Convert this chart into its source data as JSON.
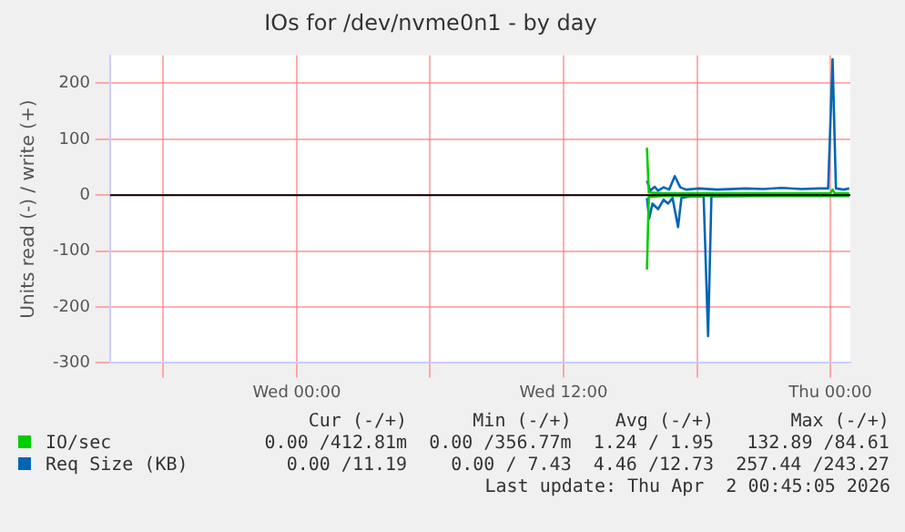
{
  "chart_data": {
    "type": "line",
    "title": "IOs for /dev/nvme0n1 - by day",
    "ylabel": "Units read (-) / write (+)",
    "xlim": [
      "2026-03-31T15:36",
      "2026-04-02T00:54"
    ],
    "xticks": [
      {
        "value": "2026-03-31T18:00",
        "label": null
      },
      {
        "value": "2026-04-01T00:00",
        "label": "Wed 00:00"
      },
      {
        "value": "2026-04-01T06:00",
        "label": null
      },
      {
        "value": "2026-04-01T12:00",
        "label": "Wed 12:00"
      },
      {
        "value": "2026-04-01T18:00",
        "label": null
      },
      {
        "value": "2026-04-02T00:00",
        "label": "Thu 00:00"
      }
    ],
    "ylim": [
      -300,
      250
    ],
    "yticks": [
      -300,
      -200,
      -100,
      0,
      100,
      200
    ],
    "grid": true,
    "legend": "bottom",
    "marker": "none",
    "ref_lines": [
      {
        "axis": "y",
        "value": 0,
        "color": "#000000"
      }
    ],
    "series": [
      {
        "name": "IO/sec",
        "color": "#00cc00",
        "x": [
          "2026-04-01T15:45",
          "2026-04-01T15:50",
          "2026-04-01T16:30",
          "2026-04-01T18:00",
          "2026-04-01T20:00",
          "2026-04-01T22:00",
          "2026-04-02T00:00",
          "2026-04-02T00:06",
          "2026-04-02T00:12",
          "2026-04-02T00:51"
        ],
        "values": [
          85,
          5,
          3,
          3,
          3,
          3,
          3,
          10,
          3,
          3
        ]
      },
      {
        "color": "#00cc00",
        "x": [
          "2026-04-01T15:45",
          "2026-04-01T15:50",
          "2026-04-01T16:30",
          "2026-04-01T18:00",
          "2026-04-01T20:00",
          "2026-04-01T22:00",
          "2026-04-02T00:51"
        ],
        "values": [
          -133,
          -3,
          -1,
          -1,
          -1,
          -1,
          -1
        ]
      },
      {
        "name": "Req Size (KB)",
        "color": "#0066b3",
        "x": [
          "2026-04-01T15:45",
          "2026-04-01T15:54",
          "2026-04-01T16:06",
          "2026-04-01T16:15",
          "2026-04-01T16:30",
          "2026-04-01T16:45",
          "2026-04-01T17:00",
          "2026-04-01T17:15",
          "2026-04-01T17:30",
          "2026-04-01T18:06",
          "2026-04-01T18:54",
          "2026-04-01T20:12",
          "2026-04-01T21:00",
          "2026-04-01T21:48",
          "2026-04-01T22:42",
          "2026-04-01T23:30",
          "2026-04-01T23:54",
          "2026-04-02T00:06",
          "2026-04-02T00:15",
          "2026-04-02T00:36",
          "2026-04-02T00:51"
        ],
        "values": [
          26,
          8,
          15,
          8,
          14,
          10,
          34,
          14,
          10,
          12,
          10,
          12,
          11,
          13,
          11,
          12,
          12,
          243,
          12,
          10,
          12
        ]
      },
      {
        "color": "#0066b3",
        "x": [
          "2026-04-01T15:45",
          "2026-04-01T15:51",
          "2026-04-01T16:00",
          "2026-04-01T16:15",
          "2026-04-01T16:30",
          "2026-04-01T16:42",
          "2026-04-01T16:54",
          "2026-04-01T17:09",
          "2026-04-01T17:18",
          "2026-04-01T17:42",
          "2026-04-01T18:18",
          "2026-04-01T18:30",
          "2026-04-01T18:39",
          "2026-04-01T21:00",
          "2026-04-02T00:51"
        ],
        "values": [
          -5,
          -42,
          -15,
          -25,
          -8,
          -15,
          -5,
          -57,
          -5,
          -2,
          -2,
          -252,
          -2,
          -1,
          -1
        ]
      }
    ],
    "annotations": [
      "Cur (-/+)",
      "Min (-/+)",
      "Avg (-/+)",
      "Max (-/+)",
      "0.00 /412.81m",
      "0.00 /356.77m",
      "1.24 / 1.95",
      "132.89 /84.61",
      "0.00 /11.19",
      "0.00 / 7.43",
      "4.46 /12.73",
      "257.44 /243.27",
      "Last update: Thu Apr  2 00:45:05 2026"
    ]
  }
}
